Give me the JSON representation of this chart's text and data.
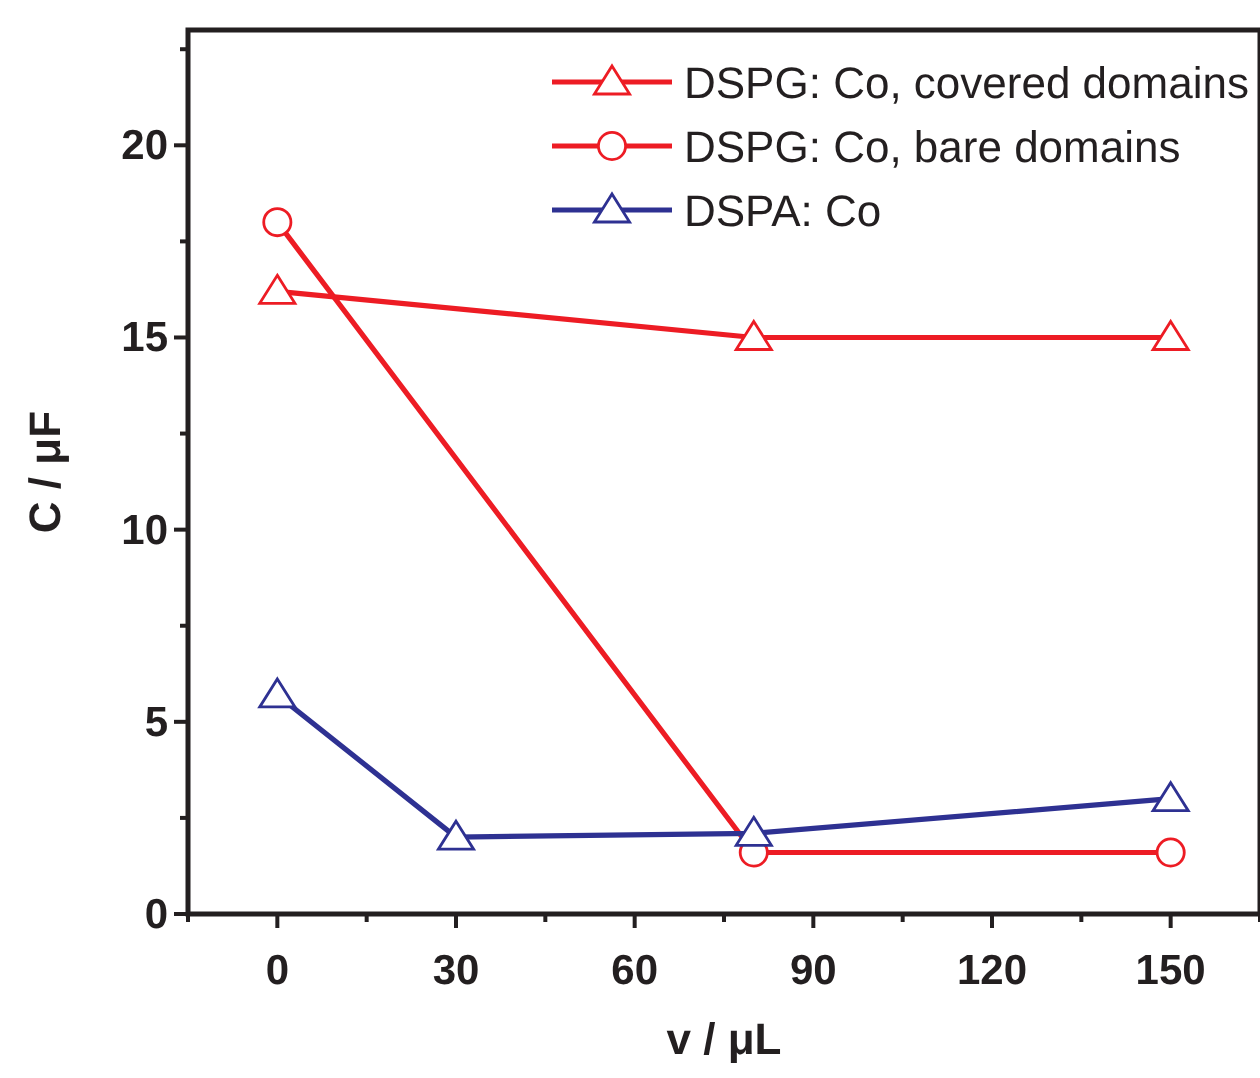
{
  "chart_data": {
    "type": "line",
    "xlabel": "v / μL",
    "ylabel": "C / μF",
    "xlim": [
      -15,
      165
    ],
    "ylim": [
      0,
      23
    ],
    "xticks": [
      0,
      30,
      60,
      90,
      120,
      150
    ],
    "yticks": [
      0,
      5,
      10,
      15,
      20
    ],
    "grid": false,
    "legend": "top right",
    "line_style": "solid",
    "series": [
      {
        "name": "DSPG: Co, covered domains",
        "color": "#ed1c24",
        "marker": "triangle",
        "x": [
          0,
          80,
          150
        ],
        "values": [
          16.2,
          15,
          15
        ]
      },
      {
        "name": "DSPG: Co, bare domains",
        "color": "#ed1c24",
        "marker": "circle",
        "x": [
          0,
          80,
          150
        ],
        "values": [
          18,
          1.6,
          1.6
        ]
      },
      {
        "name": "DSPA: Co",
        "color": "#2e3192",
        "marker": "triangle",
        "x": [
          0,
          30,
          80,
          150
        ],
        "values": [
          5.7,
          2,
          2.1,
          3
        ]
      }
    ]
  }
}
